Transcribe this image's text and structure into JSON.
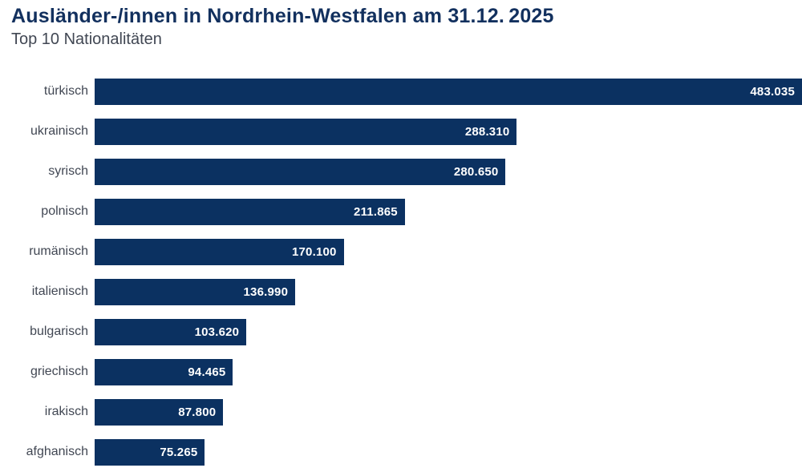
{
  "header": {
    "title": "Ausländer-/innen in Nordrhein-Westfalen am 31.12. 2025",
    "subtitle": "Top 10 Nationalitäten"
  },
  "colors": {
    "title": "#12305e",
    "label": "#414753",
    "bar": "#0b3161",
    "value_text": "#ffffff",
    "background": "#ffffff"
  },
  "chart_data": {
    "type": "bar",
    "orientation": "horizontal",
    "title": "Ausländer-/innen in Nordrhein-Westfalen am 31.12. 2025",
    "subtitle": "Top 10 Nationalitäten",
    "categories": [
      "türkisch",
      "ukrainisch",
      "syrisch",
      "polnisch",
      "rumänisch",
      "italienisch",
      "bulgarisch",
      "griechisch",
      "irakisch",
      "afghanisch"
    ],
    "values": [
      483035,
      288310,
      280650,
      211865,
      170100,
      136990,
      103620,
      94465,
      87800,
      75265
    ],
    "value_labels": [
      "483.035",
      "288.310",
      "280.650",
      "211.865",
      "170.100",
      "136.990",
      "103.620",
      "94.465",
      "87.800",
      "75.265"
    ],
    "xlabel": "",
    "ylabel": "",
    "xlim": [
      0,
      483035
    ],
    "grid": false,
    "legend": false,
    "value_label_position": "inside-end",
    "bar_label_position": "left"
  }
}
